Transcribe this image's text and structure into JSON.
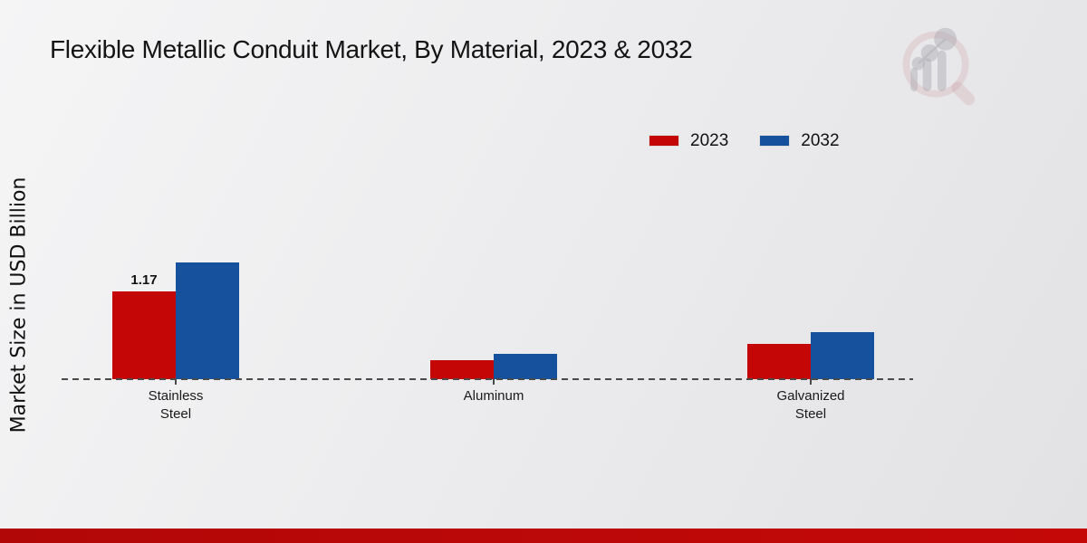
{
  "chart_data": {
    "type": "bar",
    "title": "Flexible Metallic Conduit Market, By Material, 2023 & 2032",
    "ylabel": "Market Size in USD Billion",
    "categories": [
      "Stainless Steel",
      "Aluminum",
      "Galvanized Steel"
    ],
    "series": [
      {
        "name": "2023",
        "color": "#c40606",
        "values": [
          1.17,
          0.25,
          0.47
        ]
      },
      {
        "name": "2032",
        "color": "#15519d",
        "values": [
          1.56,
          0.34,
          0.63
        ]
      }
    ],
    "value_labels": [
      {
        "series_index": 0,
        "category_index": 0,
        "text": "1.17"
      }
    ],
    "ylim": [
      0,
      1.7
    ],
    "grid": false,
    "baseline_style": "dashed",
    "legend_position": "top-right"
  },
  "branding": {
    "logo_name": "market-research-future-watermark",
    "accent_bar_color_left": "#b20707",
    "accent_bar_color_right": "#c40808"
  }
}
